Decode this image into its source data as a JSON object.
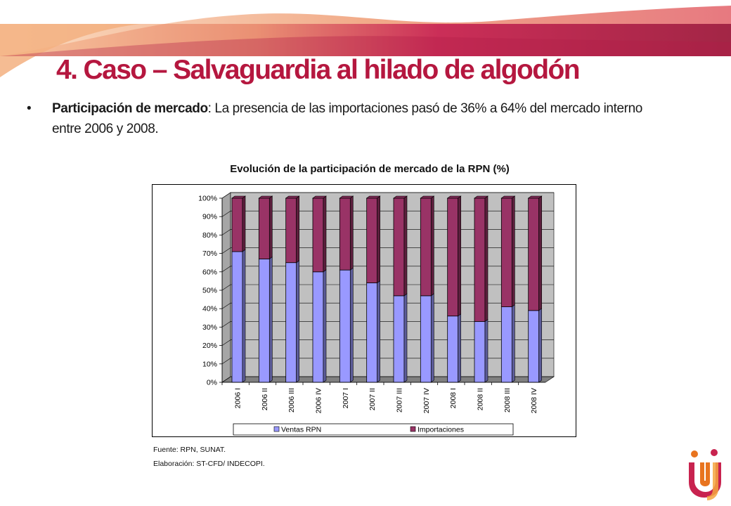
{
  "slide": {
    "title": "4. Caso – Salvaguardia al hilado de algodón",
    "bullet_marker": "•",
    "bullet_bold": "Participación de mercado",
    "bullet_text": ": La presencia de las importaciones pasó de 36%  a 64%  del mercado interno entre 2006 y 2008.",
    "source": "Fuente: RPN, SUNAT.",
    "elaboration": "Elaboración: ST-CFD/ INDECOPI."
  },
  "colors": {
    "title": "#b5173f",
    "ventas": "#9999ff",
    "importaciones": "#993366",
    "plot_back": "#c0c0c0",
    "banner_left": "#f6b88a",
    "banner_mid": "#c8234f",
    "banner_right": "#9e1a3c"
  },
  "chart_data": {
    "type": "bar",
    "stacked": "percent",
    "title": "Evolución de la participación de mercado de la RPN (%)",
    "categories": [
      "2006 I",
      "2006 II",
      "2006 III",
      "2006 IV",
      "2007 I",
      "2007 II",
      "2007 III",
      "2007 IV",
      "2008 I",
      "2008 II",
      "2008 III",
      "2008 IV"
    ],
    "series": [
      {
        "name": "Ventas RPN",
        "color": "#9999ff",
        "values": [
          71,
          67,
          65,
          60,
          61,
          54,
          47,
          47,
          36,
          33,
          41,
          39
        ]
      },
      {
        "name": "Importaciones",
        "color": "#993366",
        "values": [
          29,
          33,
          35,
          40,
          39,
          46,
          53,
          53,
          64,
          67,
          59,
          61
        ]
      }
    ],
    "yticks": [
      "0%",
      "10%",
      "20%",
      "30%",
      "40%",
      "50%",
      "60%",
      "70%",
      "80%",
      "90%",
      "100%"
    ],
    "ylim": [
      0,
      100
    ],
    "grid": true,
    "legend_position": "bottom",
    "three_d": true
  },
  "logo": {
    "name": "indecopi-logo"
  }
}
